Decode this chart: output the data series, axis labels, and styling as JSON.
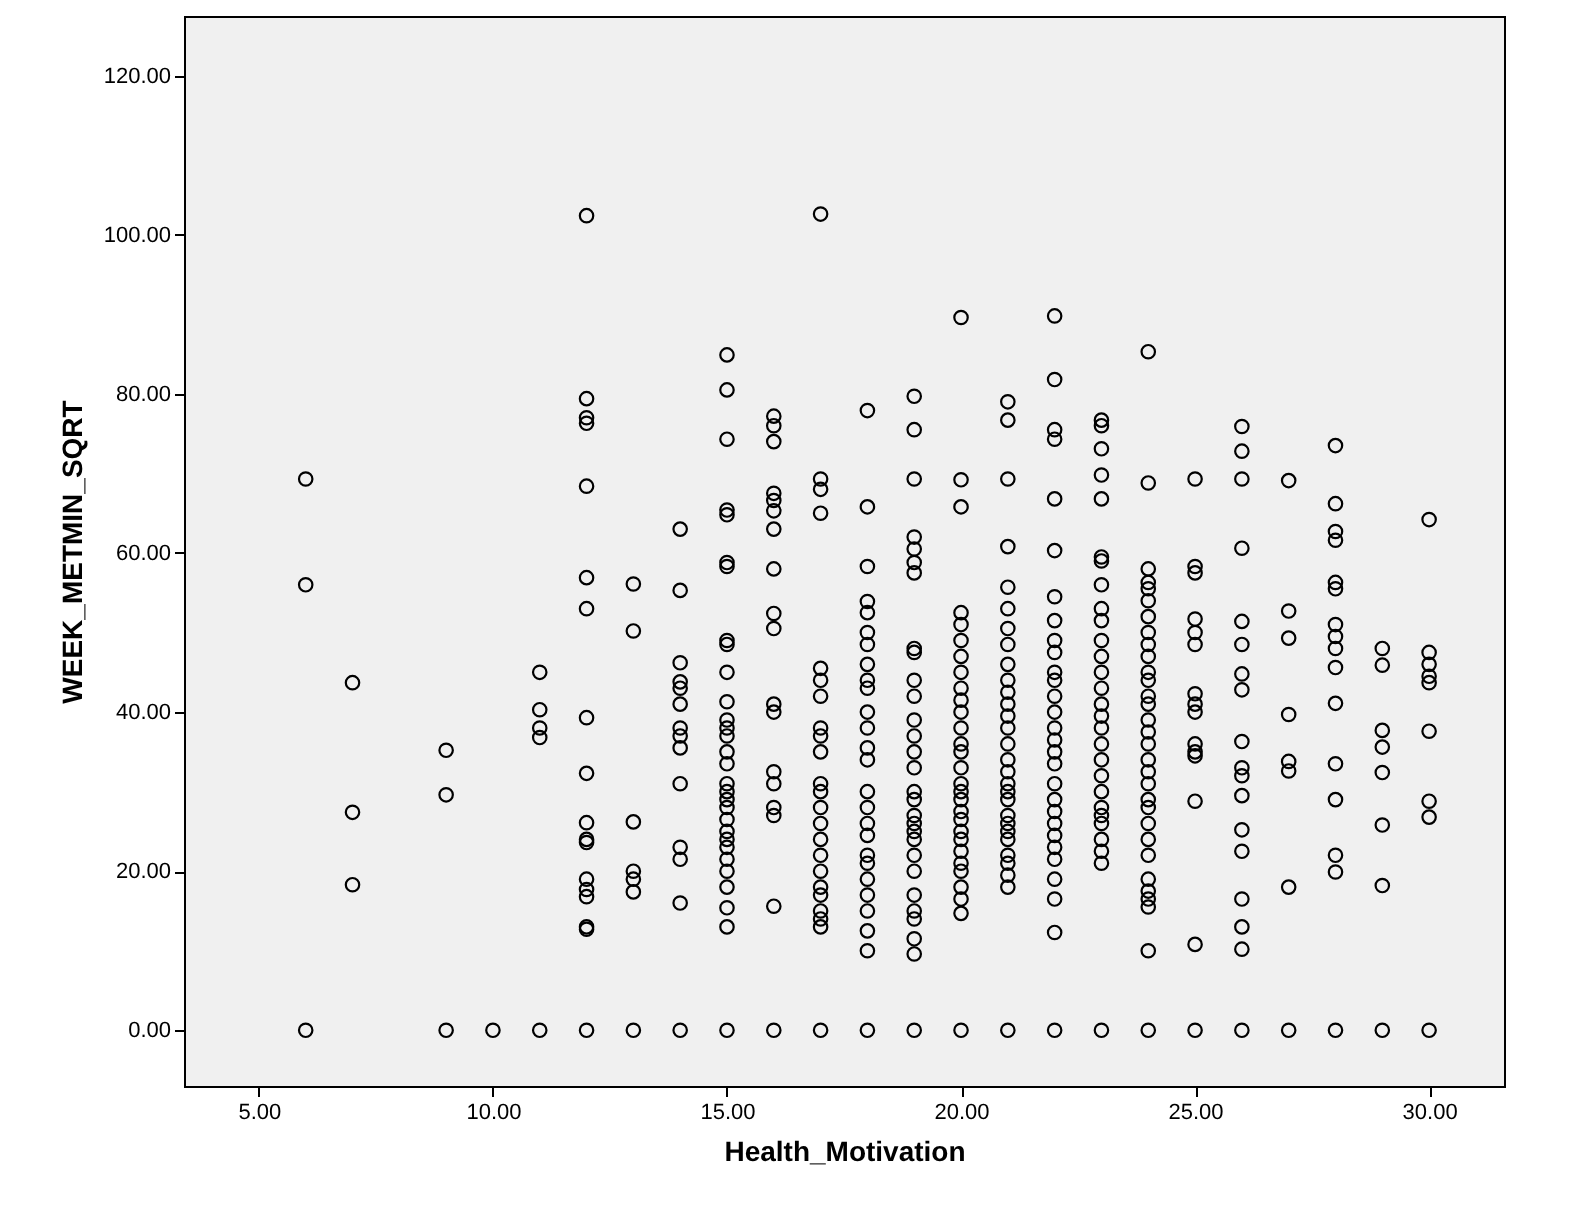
{
  "chart_data": {
    "type": "scatter",
    "xlabel": "Health_Motivation",
    "ylabel": "WEEK_METMIN_SQRT",
    "x": [
      6,
      6,
      6,
      7,
      7,
      7,
      9,
      9,
      9,
      10,
      11,
      11,
      11,
      11,
      11,
      12,
      12,
      12,
      12,
      12,
      12,
      12,
      12,
      12,
      12,
      12,
      12,
      12,
      12,
      12,
      12,
      12,
      12,
      13,
      13,
      13,
      13,
      13,
      13,
      13,
      14,
      14,
      14,
      14,
      14,
      14,
      14,
      14,
      14,
      14,
      14,
      14,
      14,
      14,
      15,
      15,
      15,
      15,
      15,
      15,
      15,
      15,
      15,
      15,
      15,
      15,
      15,
      15,
      15,
      15,
      15,
      15,
      15,
      15,
      15,
      15,
      15,
      15,
      15,
      15,
      15,
      15,
      15,
      15,
      16,
      16,
      16,
      16,
      16,
      16,
      16,
      16,
      16,
      16,
      16,
      16,
      16,
      16,
      16,
      16,
      16,
      16,
      17,
      17,
      17,
      17,
      17,
      17,
      17,
      17,
      17,
      17,
      17,
      17,
      17,
      17,
      17,
      17,
      17,
      17,
      17,
      17,
      17,
      17,
      17,
      18,
      18,
      18,
      18,
      18,
      18,
      18,
      18,
      18,
      18,
      18,
      18,
      18,
      18,
      18,
      18,
      18,
      18,
      18,
      18,
      18,
      18,
      18,
      18,
      18,
      18,
      19,
      19,
      19,
      19,
      19,
      19,
      19,
      19,
      19,
      19,
      19,
      19,
      19,
      19,
      19,
      19,
      19,
      19,
      19,
      19,
      19,
      19,
      19,
      19,
      19,
      19,
      19,
      19,
      19,
      20,
      20,
      20,
      20,
      20,
      20,
      20,
      20,
      20,
      20,
      20,
      20,
      20,
      20,
      20,
      20,
      20,
      20,
      20,
      20,
      20,
      20,
      20,
      20,
      20,
      20,
      20,
      20,
      20,
      21,
      21,
      21,
      21,
      21,
      21,
      21,
      21,
      21,
      21,
      21,
      21,
      21,
      21,
      21,
      21,
      21,
      21,
      21,
      21,
      21,
      21,
      21,
      21,
      21,
      21,
      21,
      21,
      21,
      22,
      22,
      22,
      22,
      22,
      22,
      22,
      22,
      22,
      22,
      22,
      22,
      22,
      22,
      22,
      22,
      22,
      22,
      22,
      22,
      22,
      22,
      22,
      22,
      22,
      22,
      22,
      22,
      22,
      23,
      23,
      23,
      23,
      23,
      23,
      23,
      23,
      23,
      23,
      23,
      23,
      23,
      23,
      23,
      23,
      23,
      23,
      23,
      23,
      23,
      23,
      23,
      23,
      23,
      23,
      23,
      23,
      24,
      24,
      24,
      24,
      24,
      24,
      24,
      24,
      24,
      24,
      24,
      24,
      24,
      24,
      24,
      24,
      24,
      24,
      24,
      24,
      24,
      24,
      24,
      24,
      24,
      24,
      24,
      24,
      24,
      24,
      24,
      25,
      25,
      25,
      25,
      25,
      25,
      25,
      25,
      25,
      25,
      25,
      25,
      25,
      25,
      25,
      26,
      26,
      26,
      26,
      26,
      26,
      26,
      26,
      26,
      26,
      26,
      26,
      26,
      26,
      26,
      26,
      26,
      26,
      27,
      27,
      27,
      27,
      27,
      27,
      27,
      27,
      28,
      28,
      28,
      28,
      28,
      28,
      28,
      28,
      28,
      28,
      28,
      28,
      28,
      28,
      28,
      28,
      29,
      29,
      29,
      29,
      29,
      29,
      29,
      29,
      30,
      30,
      30,
      30,
      30,
      30,
      30,
      30,
      30
    ],
    "values": [
      69.3,
      56,
      0,
      43.7,
      27.4,
      18.3,
      35.2,
      29.6,
      0,
      0,
      45,
      40.3,
      38,
      36.8,
      0,
      102.4,
      79.4,
      77,
      76.3,
      68.4,
      56.9,
      53,
      39.3,
      32.3,
      26.1,
      24,
      23.6,
      19,
      17.7,
      16.8,
      13,
      12.7,
      0,
      56.1,
      50.2,
      26.2,
      20,
      19,
      17.4,
      0,
      63,
      55.3,
      46.2,
      43.8,
      43,
      41,
      38,
      37,
      35.5,
      31,
      23,
      21.5,
      16,
      0,
      84.9,
      80.5,
      74.3,
      65.4,
      64.8,
      58.8,
      58.3,
      49,
      48.5,
      45,
      41.3,
      39,
      38,
      37,
      35,
      33.5,
      31,
      30,
      29,
      28,
      26.5,
      25,
      24,
      23,
      21.5,
      20,
      18,
      15.4,
      13,
      0,
      77.2,
      76,
      74,
      67.5,
      66.6,
      65.3,
      63,
      58,
      52.4,
      50.5,
      41,
      40,
      32.5,
      31,
      28,
      27,
      15.6,
      0,
      102.6,
      69.3,
      68,
      65,
      45.5,
      44,
      42,
      38,
      37,
      35,
      31,
      30,
      28,
      26,
      24,
      22,
      20,
      18,
      17,
      15,
      14,
      13,
      0,
      77.9,
      65.8,
      58.3,
      53.9,
      52.5,
      50,
      48.5,
      46,
      44,
      43,
      40,
      38,
      35.5,
      34,
      30,
      28,
      26,
      24.5,
      22,
      21,
      19,
      17,
      15,
      12.5,
      10,
      0,
      79.7,
      75.5,
      69.3,
      62,
      60.5,
      58.8,
      57.5,
      48,
      47.5,
      44,
      42,
      39,
      37,
      35,
      33,
      30,
      29,
      27,
      26,
      25,
      24,
      22,
      20,
      17,
      15,
      14,
      11.5,
      9.6,
      0,
      89.6,
      69.2,
      65.8,
      52.5,
      51,
      49,
      47,
      45,
      43,
      41.5,
      40,
      38,
      36,
      35,
      33,
      31,
      30,
      29,
      27.5,
      26.5,
      25,
      24,
      22.5,
      21,
      20,
      18,
      16.5,
      14.7,
      0,
      79,
      76.7,
      69.3,
      60.8,
      55.7,
      53,
      50.5,
      48.5,
      46,
      44,
      42.5,
      41,
      39.5,
      38,
      36,
      34,
      32.5,
      31,
      30,
      29,
      27,
      26,
      25,
      24,
      22,
      21,
      19.5,
      18,
      0,
      89.8,
      81.8,
      75.5,
      74.3,
      66.8,
      60.3,
      54.5,
      51.5,
      49,
      47.5,
      45,
      44,
      42,
      40,
      38,
      36.5,
      35,
      33.5,
      31,
      29,
      27.5,
      26,
      24.5,
      23,
      21.5,
      19,
      16.5,
      12.3,
      0,
      76.7,
      76,
      73.1,
      69.8,
      66.8,
      59.5,
      59,
      56,
      53,
      51.5,
      49,
      47,
      45,
      43,
      41,
      39.5,
      38,
      36,
      34,
      32,
      30,
      28,
      27,
      26,
      24,
      22.5,
      21,
      0,
      85.3,
      68.8,
      58,
      56.3,
      55.5,
      54,
      52,
      50,
      48.5,
      47,
      45,
      44,
      42,
      41,
      39,
      37.5,
      36,
      34,
      32.5,
      31,
      29,
      28,
      26,
      24,
      22,
      19,
      17.5,
      16.5,
      15.5,
      10,
      0,
      69.3,
      58.3,
      57.5,
      51.7,
      50,
      48.5,
      42.3,
      41,
      40,
      36,
      35,
      34.5,
      28.8,
      10.8,
      0,
      75.9,
      72.8,
      69.3,
      60.6,
      51.4,
      48.5,
      44.8,
      42.8,
      36.3,
      33,
      32,
      29.5,
      25.2,
      22.5,
      16.5,
      13,
      10.2,
      0,
      69.1,
      52.7,
      49.3,
      39.7,
      33.8,
      32.6,
      18,
      0,
      73.5,
      66.2,
      62.7,
      61.6,
      56.3,
      55.5,
      51,
      49.5,
      48,
      45.6,
      41.1,
      33.5,
      29,
      22,
      19.9,
      0,
      48,
      45.9,
      37.7,
      35.6,
      32.4,
      25.8,
      18.2,
      0,
      64.2,
      47.5,
      46,
      44.5,
      43.7,
      37.6,
      28.8,
      26.8,
      0
    ],
    "color": "#000000",
    "marker": "circle",
    "xlim": [
      3.4,
      31.6
    ],
    "ylim": [
      -7,
      127.5
    ],
    "xticks": [
      {
        "value": 5,
        "label": "5.00"
      },
      {
        "value": 10,
        "label": "10.00"
      },
      {
        "value": 15,
        "label": "15.00"
      },
      {
        "value": 20,
        "label": "20.00"
      },
      {
        "value": 25,
        "label": "25.00"
      },
      {
        "value": 30,
        "label": "30.00"
      }
    ],
    "yticks": [
      {
        "value": 0,
        "label": "0.00"
      },
      {
        "value": 20,
        "label": "20.00"
      },
      {
        "value": 40,
        "label": "40.00"
      },
      {
        "value": 60,
        "label": "60.00"
      },
      {
        "value": 80,
        "label": "80.00"
      },
      {
        "value": 100,
        "label": "100.00"
      },
      {
        "value": 120,
        "label": "120.00"
      }
    ],
    "grid": false
  }
}
